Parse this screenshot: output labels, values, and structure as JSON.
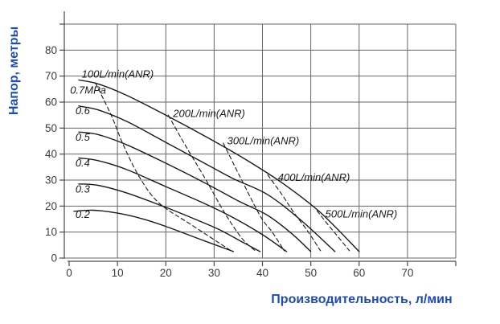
{
  "colors": {
    "axis_title_blue": "#1c4bb5",
    "grid": "#666666",
    "axis_line": "#4a4a4a",
    "tick_label": "#3c3c3c",
    "curve": "#1a1a1a",
    "background": "#ffffff"
  },
  "chart_data": {
    "type": "line",
    "title": "",
    "xlabel": "Производительность, л/мин",
    "ylabel": "Напор, метры",
    "xlim": [
      0,
      80
    ],
    "ylim": [
      0,
      90
    ],
    "grid": true,
    "grid_step": 10,
    "x_ticks": [
      0,
      10,
      20,
      30,
      40,
      50,
      60,
      70
    ],
    "y_ticks": [
      0,
      10,
      20,
      30,
      40,
      50,
      60,
      70,
      80
    ],
    "legend_position": "none",
    "series": [
      {
        "name": "0.7MPa",
        "style": "solid",
        "label": {
          "text": "0.7MPa",
          "x": 0.2,
          "y": 63.2
        },
        "points": [
          [
            2,
            68.5
          ],
          [
            6,
            67
          ],
          [
            12,
            62.5
          ],
          [
            20,
            55
          ],
          [
            28,
            47
          ],
          [
            36,
            38.5
          ],
          [
            44,
            29
          ],
          [
            52,
            17.5
          ],
          [
            60,
            2.5
          ]
        ]
      },
      {
        "name": "0.6",
        "style": "solid",
        "label": {
          "text": "0.6",
          "x": 1.3,
          "y": 55.3
        },
        "points": [
          [
            2,
            58.5
          ],
          [
            6,
            57
          ],
          [
            12,
            52.5
          ],
          [
            20,
            44.5
          ],
          [
            28,
            36.5
          ],
          [
            34,
            30.5
          ],
          [
            41,
            24.5
          ],
          [
            48,
            14.5
          ],
          [
            55,
            2.5
          ]
        ]
      },
      {
        "name": "0.5",
        "style": "solid",
        "label": {
          "text": "0.5",
          "x": 1.3,
          "y": 45.1
        },
        "points": [
          [
            2,
            48.5
          ],
          [
            6,
            47.5
          ],
          [
            12,
            43.5
          ],
          [
            20,
            36.5
          ],
          [
            28,
            29
          ],
          [
            35,
            22
          ],
          [
            41,
            16.5
          ],
          [
            46,
            9.5
          ],
          [
            50,
            2.5
          ]
        ]
      },
      {
        "name": "0.4",
        "style": "solid",
        "label": {
          "text": "0.4",
          "x": 1.3,
          "y": 35.3
        },
        "points": [
          [
            2,
            38.5
          ],
          [
            6,
            37.5
          ],
          [
            12,
            34
          ],
          [
            20,
            27.5
          ],
          [
            28,
            21
          ],
          [
            34,
            15.5
          ],
          [
            40,
            9
          ],
          [
            45,
            2.5
          ]
        ]
      },
      {
        "name": "0.3",
        "style": "solid",
        "label": {
          "text": "0.3",
          "x": 1.3,
          "y": 25.2
        },
        "points": [
          [
            2,
            28.5
          ],
          [
            6,
            28
          ],
          [
            12,
            25
          ],
          [
            20,
            19.5
          ],
          [
            26,
            15
          ],
          [
            31,
            11
          ],
          [
            36,
            6
          ],
          [
            39.5,
            2.5
          ]
        ]
      },
      {
        "name": "0.2",
        "style": "solid",
        "label": {
          "text": "0.2",
          "x": 1.3,
          "y": 15.4
        },
        "points": [
          [
            1,
            18
          ],
          [
            5,
            18.4
          ],
          [
            10,
            17.3
          ],
          [
            15,
            15.2
          ],
          [
            20,
            12.2
          ],
          [
            27,
            7.3
          ],
          [
            34,
            2.5
          ]
        ]
      },
      {
        "name": "100L/min(ANR)",
        "style": "dashed",
        "label": {
          "text": "100L/min(ANR)",
          "x": 2.6,
          "y": 69.5
        },
        "points": [
          [
            5.4,
            67.5
          ],
          [
            8.7,
            55
          ],
          [
            11.2,
            43.6
          ],
          [
            14.5,
            31.3
          ],
          [
            18.6,
            21.2
          ],
          [
            25.7,
            12.3
          ],
          [
            33.5,
            2.8
          ]
        ]
      },
      {
        "name": "200L/min(ANR)",
        "style": "dashed",
        "label": {
          "text": "200L/min(ANR)",
          "x": 21.5,
          "y": 54.3
        },
        "points": [
          [
            20.5,
            55
          ],
          [
            24,
            43.5
          ],
          [
            28.2,
            30.4
          ],
          [
            32.3,
            17
          ],
          [
            35.8,
            7.5
          ],
          [
            38.5,
            2.8
          ]
        ]
      },
      {
        "name": "300L/min(ANR)",
        "style": "dashed",
        "label": {
          "text": "300L/min(ANR)",
          "x": 32.7,
          "y": 43.8
        },
        "points": [
          [
            31.9,
            44.2
          ],
          [
            35.6,
            30.4
          ],
          [
            39.6,
            16
          ],
          [
            42.1,
            9.8
          ],
          [
            44.5,
            2.8
          ]
        ]
      },
      {
        "name": "400L/min(ANR)",
        "style": "dashed",
        "label": {
          "text": "400L/min(ANR)",
          "x": 43.2,
          "y": 29.7
        },
        "points": [
          [
            41.1,
            32
          ],
          [
            44,
            24.5
          ],
          [
            46.5,
            17.5
          ],
          [
            49.5,
            10
          ],
          [
            52,
            2.8
          ]
        ]
      },
      {
        "name": "500L/min(ANR)",
        "style": "dashed",
        "label": {
          "text": "500L/min(ANR)",
          "x": 53.0,
          "y": 15.6
        },
        "points": [
          [
            51.3,
            18.2
          ],
          [
            53.5,
            13
          ],
          [
            55.5,
            8.5
          ],
          [
            58,
            2.8
          ]
        ]
      }
    ]
  }
}
